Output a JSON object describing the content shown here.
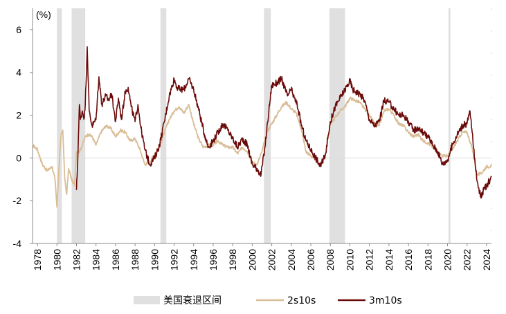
{
  "chart_data": {
    "type": "line",
    "unit_label": "(%)",
    "xlim": [
      1977.5,
      2024.5
    ],
    "ylim": [
      -4,
      7
    ],
    "y_ticks": [
      -4,
      -2,
      0,
      2,
      4,
      6
    ],
    "x_ticks": [
      "1978",
      "1980",
      "1982",
      "1984",
      "1986",
      "1988",
      "1990",
      "1992",
      "1994",
      "1996",
      "1998",
      "2000",
      "2002",
      "2004",
      "2006",
      "2008",
      "2010",
      "2012",
      "2014",
      "2016",
      "2018",
      "2020",
      "2022",
      "2024"
    ],
    "recessions": [
      [
        1980.0,
        1980.5
      ],
      [
        1981.5,
        1982.9
      ],
      [
        1990.6,
        1991.2
      ],
      [
        2001.2,
        2001.9
      ],
      [
        2007.9,
        2009.5
      ],
      [
        2020.1,
        2020.3
      ]
    ],
    "legend": [
      {
        "key": "recession",
        "label": "美国衰退区间"
      },
      {
        "key": "s2s10s",
        "label": "2s10s"
      },
      {
        "key": "s3m10s",
        "label": "3m10s"
      }
    ],
    "colors": {
      "recession": "#e0e0e0",
      "s2s10s": "#d9bd96",
      "s3m10s": "#6b0a0a",
      "zero": "#d9d9d9",
      "axis": "#888888"
    },
    "series": [
      {
        "name": "2s10s",
        "key": "s2s10s",
        "x": [
          1977.5,
          1978.0,
          1978.5,
          1979.0,
          1979.5,
          1979.8,
          1980.0,
          1980.2,
          1980.4,
          1980.6,
          1980.8,
          1981.0,
          1981.2,
          1981.5,
          1981.8,
          1982.0,
          1982.3,
          1982.6,
          1982.9,
          1983.2,
          1983.6,
          1984.0,
          1984.5,
          1985.0,
          1985.5,
          1986.0,
          1986.5,
          1987.0,
          1987.5,
          1988.0,
          1988.5,
          1989.0,
          1989.5,
          1990.0,
          1990.5,
          1991.0,
          1991.5,
          1992.0,
          1992.5,
          1993.0,
          1993.5,
          1994.0,
          1994.5,
          1995.0,
          1995.5,
          1996.0,
          1996.5,
          1997.0,
          1997.5,
          1998.0,
          1998.5,
          1999.0,
          1999.5,
          2000.0,
          2000.5,
          2001.0,
          2001.5,
          2002.0,
          2002.5,
          2003.0,
          2003.5,
          2004.0,
          2004.5,
          2005.0,
          2005.5,
          2006.0,
          2006.5,
          2007.0,
          2007.5,
          2008.0,
          2008.5,
          2009.0,
          2009.5,
          2010.0,
          2010.5,
          2011.0,
          2011.5,
          2012.0,
          2012.5,
          2013.0,
          2013.5,
          2014.0,
          2014.5,
          2015.0,
          2015.5,
          2016.0,
          2016.5,
          2017.0,
          2017.5,
          2018.0,
          2018.5,
          2019.0,
          2019.5,
          2020.0,
          2020.5,
          2021.0,
          2021.5,
          2022.0,
          2022.5,
          2022.8,
          2023.0,
          2023.5,
          2024.0,
          2024.5
        ],
        "y": [
          0.6,
          0.4,
          -0.3,
          -0.6,
          -0.4,
          -1.0,
          -2.3,
          -0.5,
          1.0,
          1.3,
          -1.0,
          -1.7,
          -0.5,
          -1.0,
          -1.3,
          0.3,
          0.3,
          0.6,
          1.0,
          1.1,
          1.0,
          0.6,
          1.2,
          1.5,
          1.4,
          1.0,
          1.3,
          1.2,
          0.8,
          0.9,
          0.4,
          -0.3,
          -0.2,
          0.2,
          0.5,
          1.2,
          1.8,
          2.2,
          2.4,
          2.1,
          2.5,
          1.6,
          0.9,
          0.5,
          0.6,
          0.6,
          0.8,
          0.6,
          0.5,
          0.5,
          0.2,
          0.5,
          0.3,
          -0.2,
          -0.3,
          0.3,
          1.2,
          1.6,
          2.0,
          2.4,
          2.6,
          2.3,
          2.1,
          1.4,
          0.3,
          0.1,
          -0.1,
          -0.4,
          0.2,
          1.6,
          1.9,
          2.2,
          2.4,
          2.8,
          2.7,
          2.6,
          2.3,
          2.0,
          1.6,
          1.5,
          2.2,
          2.3,
          2.0,
          1.6,
          1.5,
          1.2,
          1.0,
          1.1,
          0.8,
          0.7,
          0.5,
          0.3,
          0.1,
          0.1,
          0.4,
          0.8,
          1.2,
          1.2,
          0.5,
          -0.2,
          -0.8,
          -0.7,
          -0.4,
          -0.4
        ]
      },
      {
        "name": "3m10s",
        "key": "s3m10s",
        "x": [
          1982.0,
          1982.1,
          1982.2,
          1982.3,
          1982.4,
          1982.6,
          1982.8,
          1982.9,
          1983.1,
          1983.3,
          1983.6,
          1984.0,
          1984.3,
          1984.6,
          1985.0,
          1985.3,
          1985.6,
          1986.0,
          1986.3,
          1986.6,
          1987.0,
          1987.3,
          1987.6,
          1988.0,
          1988.3,
          1988.6,
          1989.0,
          1989.5,
          1990.0,
          1990.5,
          1991.0,
          1991.5,
          1992.0,
          1992.3,
          1992.6,
          1993.0,
          1993.5,
          1994.0,
          1994.5,
          1995.0,
          1995.5,
          1996.0,
          1996.5,
          1997.0,
          1997.5,
          1998.0,
          1998.5,
          1999.0,
          1999.5,
          2000.0,
          2000.5,
          2000.9,
          2001.3,
          2001.7,
          2002.0,
          2002.5,
          2003.0,
          2003.3,
          2003.6,
          2004.0,
          2004.3,
          2004.6,
          2005.0,
          2005.5,
          2006.0,
          2006.5,
          2007.0,
          2007.5,
          2008.0,
          2008.5,
          2009.0,
          2009.5,
          2010.0,
          2010.3,
          2010.6,
          2011.0,
          2011.5,
          2012.0,
          2012.5,
          2013.0,
          2013.5,
          2014.0,
          2014.5,
          2015.0,
          2015.5,
          2016.0,
          2016.5,
          2017.0,
          2017.5,
          2018.0,
          2018.5,
          2019.0,
          2019.5,
          2020.0,
          2020.5,
          2021.0,
          2021.5,
          2022.0,
          2022.3,
          2022.6,
          2022.9,
          2023.1,
          2023.4,
          2023.7,
          2024.0,
          2024.5
        ],
        "y": [
          -1.5,
          -0.5,
          1.0,
          2.5,
          1.8,
          2.2,
          1.9,
          2.5,
          5.2,
          2.2,
          1.5,
          1.8,
          3.8,
          2.5,
          2.9,
          2.7,
          3.0,
          1.7,
          2.8,
          1.8,
          3.1,
          3.3,
          2.4,
          1.7,
          2.5,
          1.4,
          0.4,
          -0.3,
          0.0,
          0.6,
          1.7,
          2.9,
          3.7,
          3.3,
          3.2,
          3.2,
          3.7,
          3.2,
          2.3,
          1.3,
          0.5,
          0.8,
          1.2,
          1.6,
          1.3,
          0.9,
          0.5,
          0.9,
          0.6,
          -0.3,
          -0.5,
          -0.8,
          0.5,
          2.2,
          3.4,
          3.5,
          3.7,
          3.3,
          2.9,
          3.2,
          2.8,
          2.5,
          1.6,
          0.8,
          0.4,
          0.0,
          -0.4,
          0.2,
          1.7,
          2.4,
          2.8,
          3.2,
          3.6,
          3.2,
          3.1,
          3.0,
          2.7,
          1.8,
          1.5,
          1.7,
          2.7,
          2.6,
          2.3,
          2.0,
          2.0,
          1.7,
          1.3,
          1.4,
          1.2,
          1.0,
          0.6,
          0.3,
          -0.3,
          -0.1,
          0.6,
          1.1,
          1.5,
          1.6,
          2.2,
          0.8,
          -0.6,
          -1.2,
          -1.8,
          -1.5,
          -1.3,
          -0.9
        ]
      }
    ]
  }
}
